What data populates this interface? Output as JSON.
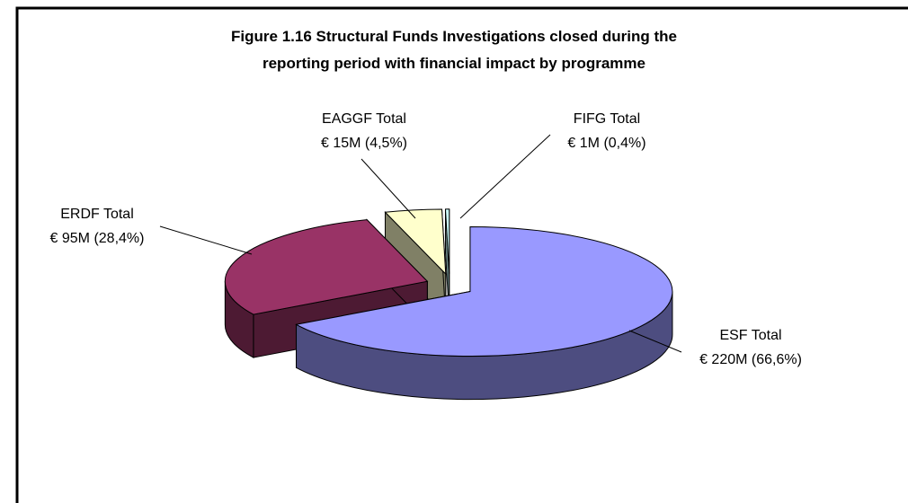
{
  "chart_data": {
    "type": "pie",
    "title": [
      "Figure 1.16 Structural Funds Investigations closed during the",
      "reporting period with financial impact by programme"
    ],
    "categories": [
      "ESF Total",
      "ERDF Total",
      "EAGGF Total",
      "FIFG Total"
    ],
    "values": [
      220,
      95,
      15,
      1
    ],
    "value_labels": [
      "€ 220M (66,6%)",
      "€ 95M (28,4%)",
      "€ 15M (4,5%)",
      "€ 1M (0,4%)"
    ],
    "colors": [
      "#9999ff",
      "#993366",
      "#ffffcc",
      "#ccffff"
    ],
    "side_colors": [
      "#4d4d80",
      "#4d1a33",
      "#808066",
      "#668080"
    ]
  }
}
